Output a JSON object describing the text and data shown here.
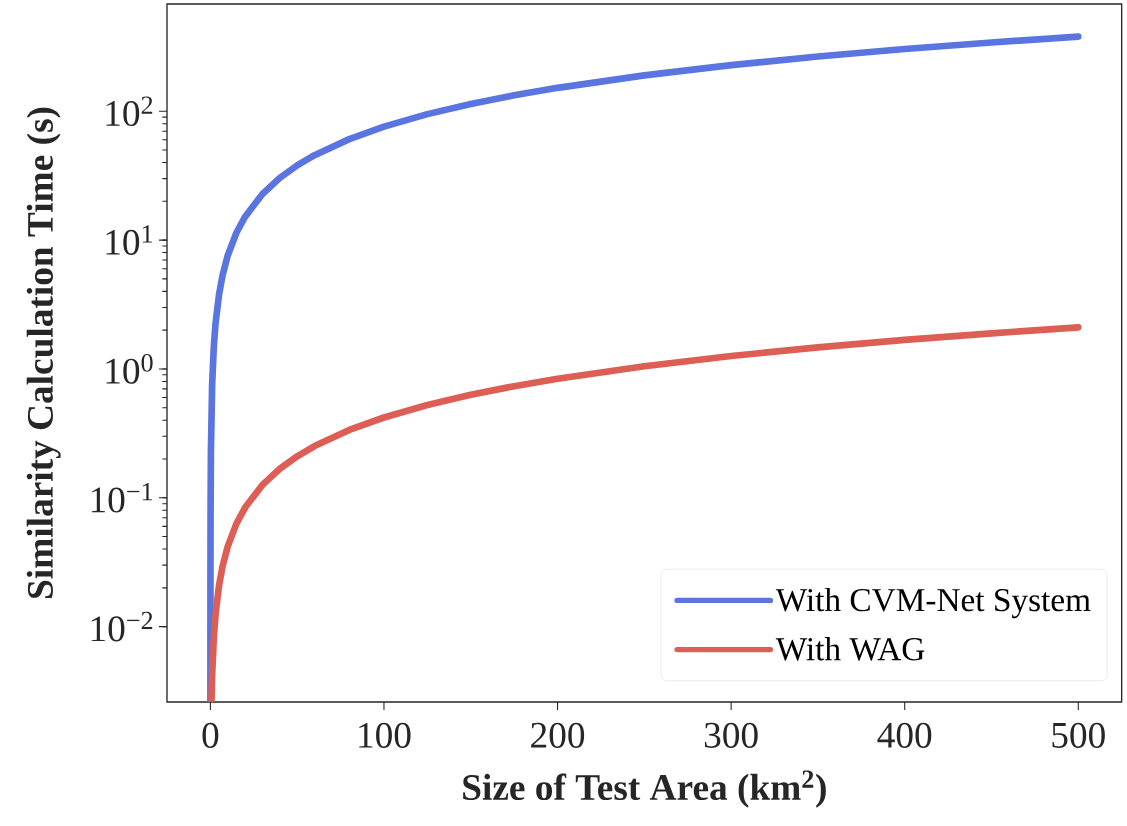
{
  "chart_data": {
    "type": "line",
    "xlabel": "Size of Test Area (km$^{2}$)",
    "ylabel": "Similarity Calculation Time (s)",
    "log": "y",
    "legend": "bottom right",
    "marker": "none",
    "line_style": "solid",
    "xlim": [
      -25,
      525
    ],
    "ylim": [
      0.0026,
      680
    ],
    "xticks": [
      0,
      100,
      200,
      300,
      400,
      500
    ],
    "yticks": [
      {
        "value": 0.01,
        "label": "10$^{−2}$"
      },
      {
        "value": 0.1,
        "label": "10$^{−1}$"
      },
      {
        "value": 1,
        "label": "10$^{0}$"
      },
      {
        "value": 10,
        "label": "10$^{1}$"
      },
      {
        "value": 100,
        "label": "10$^{2}$"
      }
    ],
    "series": [
      {
        "name": "With CVM-Net System",
        "color": "#5a74e0",
        "x": [
          0.0035,
          0.01,
          0.03,
          0.1,
          0.3,
          1,
          2,
          3,
          5,
          7,
          10,
          15,
          20,
          30,
          40,
          50,
          60,
          80,
          100,
          125,
          150,
          175,
          200,
          250,
          300,
          350,
          400,
          450,
          500
        ],
        "values": [
          0.00266,
          0.0076,
          0.0228,
          0.076,
          0.228,
          0.76,
          1.52,
          2.28,
          3.8,
          5.32,
          7.6,
          11.4,
          15.2,
          22.8,
          30.4,
          38,
          45.6,
          60.8,
          76,
          95,
          114,
          133,
          152,
          190,
          228,
          266,
          304,
          342,
          380
        ]
      },
      {
        "name": "With WAG",
        "color": "#dc5e55",
        "x": [
          0.65,
          1,
          2,
          3,
          5,
          7,
          10,
          15,
          20,
          30,
          40,
          50,
          60,
          80,
          100,
          125,
          150,
          175,
          200,
          250,
          300,
          350,
          400,
          450,
          500
        ],
        "values": [
          0.00273,
          0.0042,
          0.0084,
          0.0126,
          0.021,
          0.0294,
          0.042,
          0.063,
          0.084,
          0.126,
          0.168,
          0.21,
          0.252,
          0.336,
          0.42,
          0.525,
          0.63,
          0.735,
          0.84,
          1.05,
          1.26,
          1.47,
          1.68,
          1.89,
          2.1
        ]
      }
    ]
  }
}
